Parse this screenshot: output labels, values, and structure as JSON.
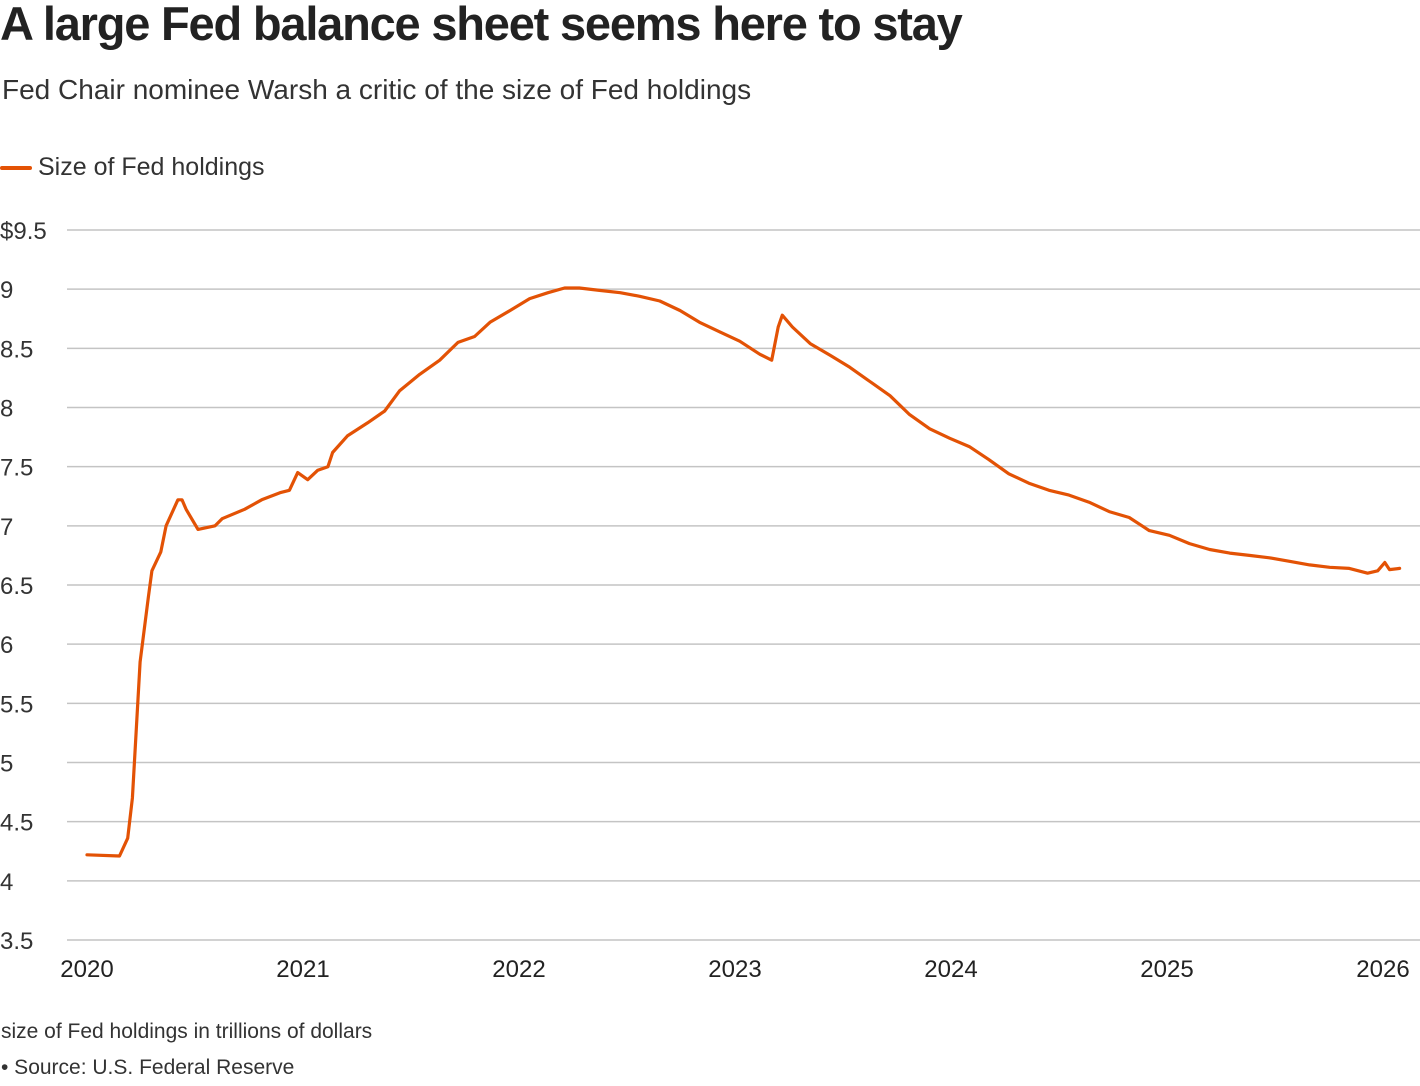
{
  "title": "A large Fed balance sheet seems here to stay",
  "subtitle": "Fed Chair nominee Warsh a critic of the size of Fed holdings",
  "note": "size of Fed holdings in trillions of dollars",
  "source": "• Source: U.S. Federal Reserve",
  "chart_data": {
    "type": "line",
    "title": "A large Fed balance sheet seems here to stay",
    "xlabel": "",
    "ylabel": "",
    "ylim": [
      3.5,
      9.5
    ],
    "xlim": [
      "2020-01-01",
      "2026-02-10"
    ],
    "y_ticks": [
      3.5,
      4,
      4.5,
      5,
      5.5,
      6,
      6.5,
      7,
      7.5,
      8,
      8.5,
      9,
      9.5
    ],
    "y_tick_labels": [
      "3.5",
      "4",
      "4.5",
      "5",
      "5.5",
      "6",
      "6.5",
      "7",
      "7.5",
      "8",
      "8.5",
      "9",
      "$9.5"
    ],
    "x_ticks": [
      "2020",
      "2021",
      "2022",
      "2023",
      "2024",
      "2025",
      "2026"
    ],
    "grid": "horizontal",
    "legend_placement": "top-left",
    "series": [
      {
        "name": "Size of Fed holdings",
        "color": "#e35205",
        "points": [
          [
            "2020-01-01",
            4.22
          ],
          [
            "2020-02-25",
            4.21
          ],
          [
            "2020-03-10",
            4.36
          ],
          [
            "2020-03-18",
            4.7
          ],
          [
            "2020-03-31",
            5.85
          ],
          [
            "2020-04-14",
            6.4
          ],
          [
            "2020-04-20",
            6.62
          ],
          [
            "2020-05-05",
            6.78
          ],
          [
            "2020-05-14",
            7.0
          ],
          [
            "2020-06-03",
            7.22
          ],
          [
            "2020-06-10",
            7.22
          ],
          [
            "2020-06-17",
            7.14
          ],
          [
            "2020-07-07",
            6.97
          ],
          [
            "2020-08-05",
            7.0
          ],
          [
            "2020-08-17",
            7.06
          ],
          [
            "2020-09-24",
            7.14
          ],
          [
            "2020-10-23",
            7.22
          ],
          [
            "2020-11-23",
            7.28
          ],
          [
            "2020-12-09",
            7.3
          ],
          [
            "2020-12-23",
            7.45
          ],
          [
            "2021-01-09",
            7.39
          ],
          [
            "2021-01-26",
            7.47
          ],
          [
            "2021-02-12",
            7.5
          ],
          [
            "2021-02-20",
            7.62
          ],
          [
            "2021-03-17",
            7.76
          ],
          [
            "2021-04-20",
            7.87
          ],
          [
            "2021-05-19",
            7.97
          ],
          [
            "2021-06-13",
            8.14
          ],
          [
            "2021-07-17",
            8.28
          ],
          [
            "2021-08-20",
            8.4
          ],
          [
            "2021-09-20",
            8.55
          ],
          [
            "2021-10-18",
            8.6
          ],
          [
            "2021-11-13",
            8.72
          ],
          [
            "2021-12-17",
            8.82
          ],
          [
            "2022-01-19",
            8.92
          ],
          [
            "2022-02-19",
            8.97
          ],
          [
            "2022-03-19",
            9.01
          ],
          [
            "2022-04-13",
            9.01
          ],
          [
            "2022-05-17",
            8.99
          ],
          [
            "2022-06-21",
            8.97
          ],
          [
            "2022-07-24",
            8.94
          ],
          [
            "2022-08-27",
            8.9
          ],
          [
            "2022-09-30",
            8.82
          ],
          [
            "2022-11-02",
            8.72
          ],
          [
            "2022-12-06",
            8.64
          ],
          [
            "2023-01-09",
            8.56
          ],
          [
            "2023-02-12",
            8.45
          ],
          [
            "2023-03-04",
            8.4
          ],
          [
            "2023-03-15",
            8.68
          ],
          [
            "2023-03-22",
            8.78
          ],
          [
            "2023-04-08",
            8.68
          ],
          [
            "2023-05-08",
            8.54
          ],
          [
            "2023-06-11",
            8.44
          ],
          [
            "2023-07-14",
            8.34
          ],
          [
            "2023-08-17",
            8.22
          ],
          [
            "2023-09-20",
            8.1
          ],
          [
            "2023-10-23",
            7.94
          ],
          [
            "2023-11-26",
            7.82
          ],
          [
            "2023-12-30",
            7.74
          ],
          [
            "2024-02-01",
            7.67
          ],
          [
            "2024-03-05",
            7.56
          ],
          [
            "2024-04-08",
            7.44
          ],
          [
            "2024-05-12",
            7.36
          ],
          [
            "2024-06-15",
            7.3
          ],
          [
            "2024-07-19",
            7.26
          ],
          [
            "2024-08-22",
            7.2
          ],
          [
            "2024-09-25",
            7.12
          ],
          [
            "2024-10-29",
            7.07
          ],
          [
            "2024-12-02",
            6.96
          ],
          [
            "2025-01-05",
            6.92
          ],
          [
            "2025-02-08",
            6.85
          ],
          [
            "2025-03-14",
            6.8
          ],
          [
            "2025-04-17",
            6.77
          ],
          [
            "2025-05-20",
            6.75
          ],
          [
            "2025-06-23",
            6.73
          ],
          [
            "2025-07-27",
            6.7
          ],
          [
            "2025-08-30",
            6.67
          ],
          [
            "2025-10-03",
            6.65
          ],
          [
            "2025-11-05",
            6.64
          ],
          [
            "2025-12-06",
            6.6
          ],
          [
            "2025-12-23",
            6.62
          ],
          [
            "2026-01-04",
            6.69
          ],
          [
            "2026-01-12",
            6.63
          ],
          [
            "2026-01-29",
            6.64
          ]
        ]
      }
    ]
  }
}
